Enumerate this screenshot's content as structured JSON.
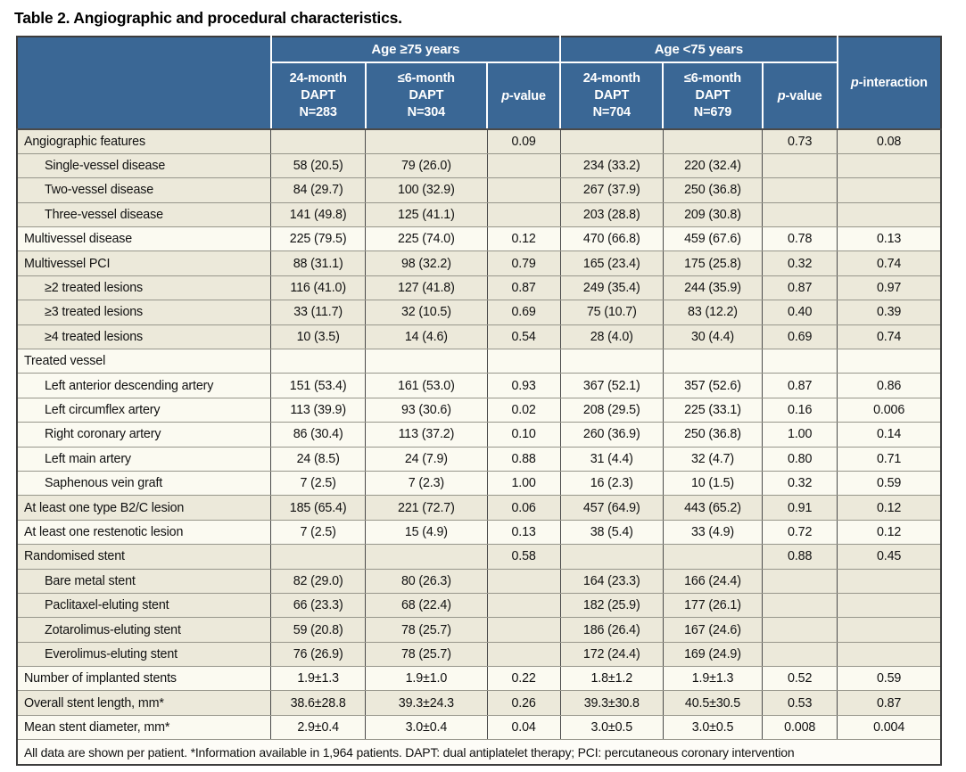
{
  "title": "Table 2. Angiographic and procedural characteristics.",
  "colors": {
    "header_blue": "#3a6795",
    "row_beige": "#ece9da",
    "row_cream": "#fbfaf1",
    "border_dark": "#3c3c3c",
    "border_light": "#97968b",
    "header_text": "#ffffff"
  },
  "table": {
    "group_headers": [
      {
        "label": "Age ≥75 years"
      },
      {
        "label": "Age <75 years"
      }
    ],
    "columns": [
      {
        "label": "24-month\nDAPT\nN=283"
      },
      {
        "label": "≤6-month\nDAPT\nN=304"
      },
      {
        "label": "24-month\nDAPT\nN=704"
      },
      {
        "label": "≤6-month\nDAPT\nN=679"
      }
    ],
    "p_label": {
      "p": "p",
      "suffix": "-value"
    },
    "p_interaction": {
      "p": "p",
      "suffix": "-interaction"
    },
    "rows": [
      {
        "label": "Angiographic features",
        "indent": 0,
        "shade": "beige",
        "cells": [
          "",
          "",
          "0.09",
          "",
          "",
          "0.73",
          "0.08"
        ]
      },
      {
        "label": "Single-vessel disease",
        "indent": 1,
        "shade": "beige",
        "cells": [
          "58 (20.5)",
          "79 (26.0)",
          "",
          "234 (33.2)",
          "220 (32.4)",
          "",
          ""
        ]
      },
      {
        "label": "Two-vessel disease",
        "indent": 1,
        "shade": "beige",
        "cells": [
          "84 (29.7)",
          "100 (32.9)",
          "",
          "267 (37.9)",
          "250 (36.8)",
          "",
          ""
        ]
      },
      {
        "label": "Three-vessel disease",
        "indent": 1,
        "shade": "beige",
        "cells": [
          "141 (49.8)",
          "125 (41.1)",
          "",
          "203 (28.8)",
          "209 (30.8)",
          "",
          ""
        ]
      },
      {
        "label": "Multivessel disease",
        "indent": 0,
        "shade": "cream",
        "cells": [
          "225 (79.5)",
          "225 (74.0)",
          "0.12",
          "470 (66.8)",
          "459 (67.6)",
          "0.78",
          "0.13"
        ]
      },
      {
        "label": "Multivessel PCI",
        "indent": 0,
        "shade": "beige",
        "cells": [
          "88 (31.1)",
          "98 (32.2)",
          "0.79",
          "165 (23.4)",
          "175 (25.8)",
          "0.32",
          "0.74"
        ]
      },
      {
        "label": "≥2 treated lesions",
        "indent": 1,
        "shade": "beige",
        "cells": [
          "116 (41.0)",
          "127 (41.8)",
          "0.87",
          "249 (35.4)",
          "244 (35.9)",
          "0.87",
          "0.97"
        ]
      },
      {
        "label": "≥3 treated lesions",
        "indent": 1,
        "shade": "beige",
        "cells": [
          "33 (11.7)",
          "32 (10.5)",
          "0.69",
          "75 (10.7)",
          "83 (12.2)",
          "0.40",
          "0.39"
        ]
      },
      {
        "label": "≥4 treated lesions",
        "indent": 1,
        "shade": "beige",
        "cells": [
          "10 (3.5)",
          "14 (4.6)",
          "0.54",
          "28 (4.0)",
          "30 (4.4)",
          "0.69",
          "0.74"
        ]
      },
      {
        "label": "Treated vessel",
        "indent": 0,
        "shade": "cream",
        "cells": [
          "",
          "",
          "",
          "",
          "",
          "",
          ""
        ]
      },
      {
        "label": "Left anterior descending artery",
        "indent": 1,
        "shade": "cream",
        "cells": [
          "151 (53.4)",
          "161 (53.0)",
          "0.93",
          "367 (52.1)",
          "357 (52.6)",
          "0.87",
          "0.86"
        ]
      },
      {
        "label": "Left circumflex artery",
        "indent": 1,
        "shade": "cream",
        "cells": [
          "113 (39.9)",
          "93 (30.6)",
          "0.02",
          "208 (29.5)",
          "225 (33.1)",
          "0.16",
          "0.006"
        ]
      },
      {
        "label": "Right coronary artery",
        "indent": 1,
        "shade": "cream",
        "cells": [
          "86 (30.4)",
          "113 (37.2)",
          "0.10",
          "260 (36.9)",
          "250 (36.8)",
          "1.00",
          "0.14"
        ]
      },
      {
        "label": "Left main artery",
        "indent": 1,
        "shade": "cream",
        "cells": [
          "24 (8.5)",
          "24 (7.9)",
          "0.88",
          "31 (4.4)",
          "32 (4.7)",
          "0.80",
          "0.71"
        ]
      },
      {
        "label": "Saphenous vein graft",
        "indent": 1,
        "shade": "cream",
        "cells": [
          "7 (2.5)",
          "7 (2.3)",
          "1.00",
          "16 (2.3)",
          "10 (1.5)",
          "0.32",
          "0.59"
        ]
      },
      {
        "label": "At least one type B2/C lesion",
        "indent": 0,
        "shade": "beige",
        "cells": [
          "185 (65.4)",
          "221 (72.7)",
          "0.06",
          "457 (64.9)",
          "443 (65.2)",
          "0.91",
          "0.12"
        ]
      },
      {
        "label": "At least one restenotic lesion",
        "indent": 0,
        "shade": "cream",
        "cells": [
          "7 (2.5)",
          "15 (4.9)",
          "0.13",
          "38 (5.4)",
          "33 (4.9)",
          "0.72",
          "0.12"
        ]
      },
      {
        "label": "Randomised stent",
        "indent": 0,
        "shade": "beige",
        "cells": [
          "",
          "",
          "0.58",
          "",
          "",
          "0.88",
          "0.45"
        ]
      },
      {
        "label": "Bare metal stent",
        "indent": 1,
        "shade": "beige",
        "cells": [
          "82 (29.0)",
          "80 (26.3)",
          "",
          "164 (23.3)",
          "166 (24.4)",
          "",
          ""
        ]
      },
      {
        "label": "Paclitaxel-eluting stent",
        "indent": 1,
        "shade": "beige",
        "cells": [
          "66 (23.3)",
          "68 (22.4)",
          "",
          "182 (25.9)",
          "177 (26.1)",
          "",
          ""
        ]
      },
      {
        "label": "Zotarolimus-eluting stent",
        "indent": 1,
        "shade": "beige",
        "cells": [
          "59 (20.8)",
          "78 (25.7)",
          "",
          "186 (26.4)",
          "167 (24.6)",
          "",
          ""
        ]
      },
      {
        "label": "Everolimus-eluting stent",
        "indent": 1,
        "shade": "beige",
        "cells": [
          "76 (26.9)",
          "78 (25.7)",
          "",
          "172 (24.4)",
          "169 (24.9)",
          "",
          ""
        ]
      },
      {
        "label": "Number of implanted stents",
        "indent": 0,
        "shade": "cream",
        "cells": [
          "1.9±1.3",
          "1.9±1.0",
          "0.22",
          "1.8±1.2",
          "1.9±1.3",
          "0.52",
          "0.59"
        ]
      },
      {
        "label": "Overall stent length, mm*",
        "indent": 0,
        "shade": "beige",
        "cells": [
          "38.6±28.8",
          "39.3±24.3",
          "0.26",
          "39.3±30.8",
          "40.5±30.5",
          "0.53",
          "0.87"
        ]
      },
      {
        "label": "Mean stent diameter, mm*",
        "indent": 0,
        "shade": "cream",
        "cells": [
          "2.9±0.4",
          "3.0±0.4",
          "0.04",
          "3.0±0.5",
          "3.0±0.5",
          "0.008",
          "0.004"
        ]
      }
    ],
    "footnote": "All data are shown per patient. *Information available in 1,964 patients. DAPT: dual antiplatelet therapy; PCI: percutaneous coronary intervention"
  }
}
